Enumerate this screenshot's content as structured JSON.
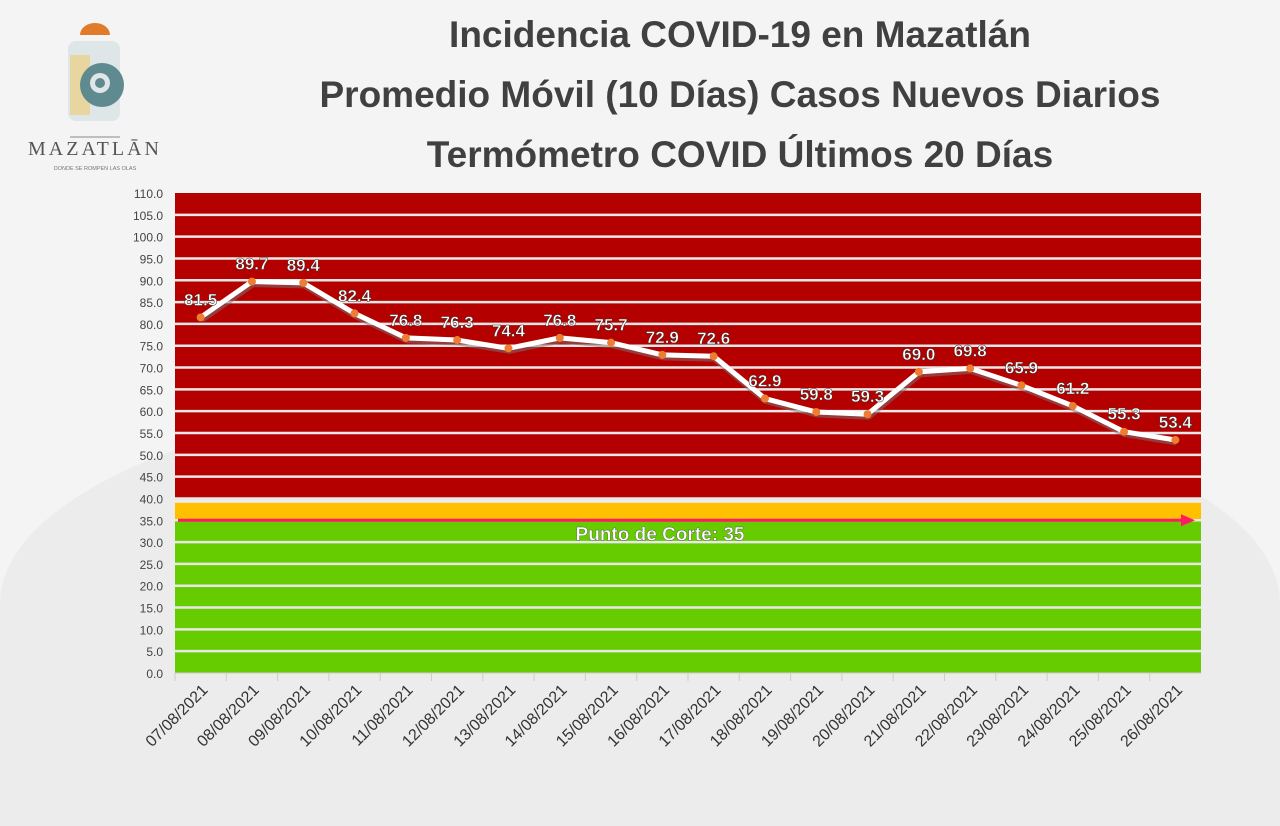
{
  "logo": {
    "name": "MAZATLĀN",
    "tagline": "DONDE SE ROMPEN LAS OLAS"
  },
  "chart_data": {
    "type": "line",
    "title": [
      "Incidencia COVID-19 en Mazatlán",
      "Promedio Móvil (10 Días) Casos Nuevos Diarios",
      "Termómetro COVID Últimos 20 Días"
    ],
    "categories": [
      "07/08/2021",
      "08/08/2021",
      "09/08/2021",
      "10/08/2021",
      "11/08/2021",
      "12/08/2021",
      "13/08/2021",
      "14/08/2021",
      "15/08/2021",
      "16/08/2021",
      "17/08/2021",
      "18/08/2021",
      "19/08/2021",
      "20/08/2021",
      "21/08/2021",
      "22/08/2021",
      "23/08/2021",
      "24/08/2021",
      "25/08/2021",
      "26/08/2021"
    ],
    "values": [
      81.5,
      89.7,
      89.4,
      82.4,
      76.8,
      76.3,
      74.4,
      76.8,
      75.7,
      72.9,
      72.6,
      62.9,
      59.8,
      59.3,
      69.0,
      69.8,
      65.9,
      61.2,
      55.3,
      53.4
    ],
    "ylim": [
      0,
      110
    ],
    "ytick_step": 5,
    "grid": true,
    "bands": [
      {
        "from": 40,
        "to": 110,
        "color": "#b50000"
      },
      {
        "from": 35,
        "to": 39,
        "color": "#ffc000"
      },
      {
        "from": 0,
        "to": 35,
        "color": "#66cc00"
      }
    ],
    "threshold": {
      "value": 35,
      "label": "Punto de Corte: 35",
      "color": "#ff1a66"
    },
    "line_color": "#ffffff",
    "marker_color": "#ed7d31"
  }
}
